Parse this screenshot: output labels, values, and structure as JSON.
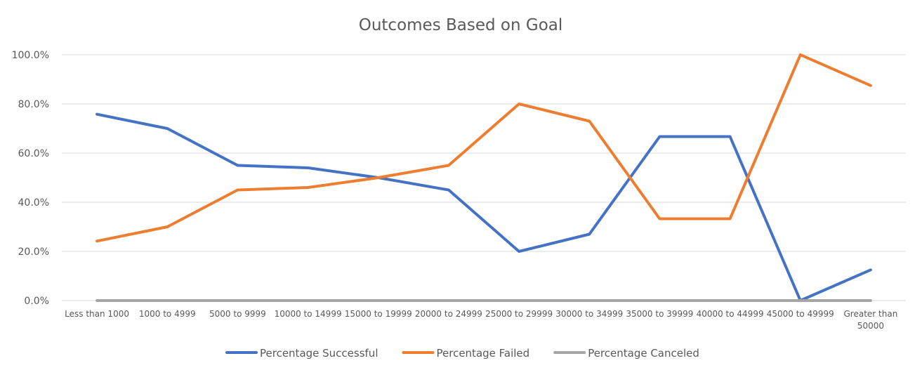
{
  "chart_data": {
    "type": "line",
    "title": "Outcomes Based on Goal",
    "xlabel": "",
    "ylabel": "",
    "ylim": [
      0,
      100
    ],
    "ytick_labels": [
      "0.0%",
      "20.0%",
      "40.0%",
      "60.0%",
      "80.0%",
      "100.0%"
    ],
    "grid": true,
    "legend_position": "bottom",
    "categories": [
      "Less than 1000",
      "1000 to 4999",
      "5000 to 9999",
      "10000 to 14999",
      "15000 to 19999",
      "20000 to 24999",
      "25000 to 29999",
      "30000 to 34999",
      "35000 to 39999",
      "40000 to 44999",
      "45000 to 49999",
      "Greater than 50000"
    ],
    "series": [
      {
        "name": "Percentage Successful",
        "color": "#4472c4",
        "values": [
          75.8,
          70.0,
          55.0,
          54.0,
          50.0,
          45.0,
          20.0,
          27.0,
          66.7,
          66.7,
          0.0,
          12.5
        ]
      },
      {
        "name": "Percentage Failed",
        "color": "#ed7d31",
        "values": [
          24.2,
          30.0,
          45.0,
          46.0,
          50.0,
          55.0,
          80.0,
          73.0,
          33.3,
          33.3,
          100.0,
          87.5
        ]
      },
      {
        "name": "Percentage Canceled",
        "color": "#a5a5a5",
        "values": [
          0,
          0,
          0,
          0,
          0,
          0,
          0,
          0,
          0,
          0,
          0,
          0
        ]
      }
    ]
  }
}
